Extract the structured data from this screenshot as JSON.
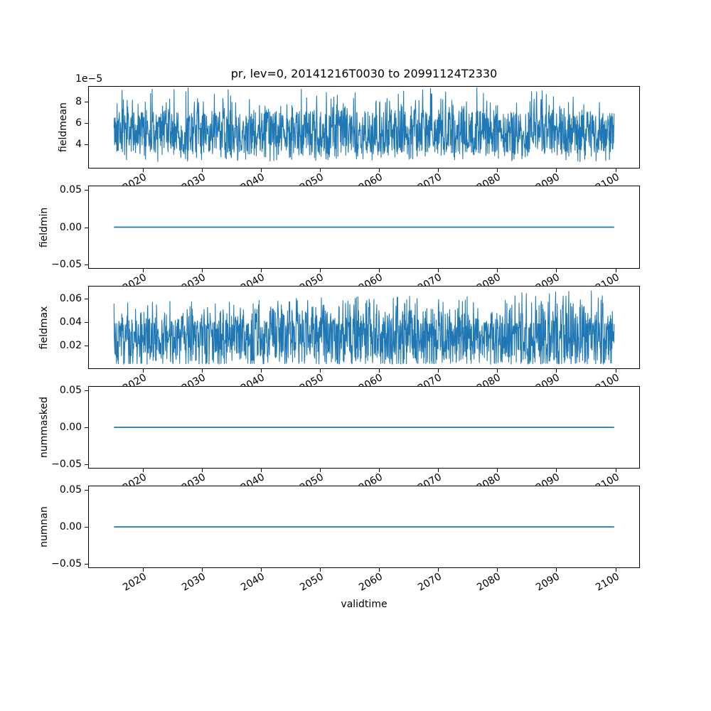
{
  "figure": {
    "title": "pr, lev=0, 20141216T0030 to 20991124T2330",
    "xlabel": "validtime",
    "background": "#ffffff",
    "line_color": "#1f77b4",
    "axis_color": "#000000"
  },
  "x_axis": {
    "label": "validtime",
    "tick_labels": [
      "2020",
      "2030",
      "2040",
      "2050",
      "2060",
      "2070",
      "2080",
      "2090",
      "2100"
    ],
    "tick_values": [
      2020,
      2030,
      2040,
      2050,
      2060,
      2070,
      2080,
      2090,
      2100
    ],
    "tick_rotation_deg": 30,
    "xlim": [
      2010.7,
      2104.15
    ],
    "data_range": [
      2014.96,
      2099.9
    ]
  },
  "chart_data": [
    {
      "type": "line",
      "name": "fieldmean",
      "ylabel": "fieldmean",
      "offset_text": "1e−5",
      "ytick_labels": [
        "8",
        "6",
        "4"
      ],
      "ytick_values": [
        8e-05,
        6e-05,
        4e-05
      ],
      "ylim": [
        1.78e-05,
        9.42e-05
      ],
      "series": {
        "kind": "noise",
        "n": 1600,
        "seed": 42,
        "core_min": 3.3e-05,
        "core_max": 7e-05,
        "spike_prob": 0.11,
        "spike_max": 9.35e-05,
        "dip_prob": 0.11,
        "dip_min": 2.35e-05,
        "trend": 0,
        "data_min": 2.3e-05,
        "data_max": 9.3e-05,
        "approx_mean": 5.2e-05
      }
    },
    {
      "type": "line",
      "name": "fieldmin",
      "ylabel": "fieldmin",
      "ytick_labels": [
        "0.05",
        "0.00",
        "−0.05"
      ],
      "ytick_values": [
        0.05,
        0.0,
        -0.05
      ],
      "ylim": [
        -0.055,
        0.055
      ],
      "series": {
        "kind": "flat",
        "value": 0.0
      }
    },
    {
      "type": "line",
      "name": "fieldmax",
      "ylabel": "fieldmax",
      "ytick_labels": [
        "0.06",
        "0.04",
        "0.02"
      ],
      "ytick_values": [
        0.06,
        0.04,
        0.02
      ],
      "ylim": [
        0.0008,
        0.0703
      ],
      "series": {
        "kind": "noise",
        "n": 1600,
        "seed": 7,
        "core_min": 0.005,
        "core_max": 0.0385,
        "spike_prob": 0.28,
        "spike_max": 0.062,
        "dip_prob": 0.06,
        "dip_min": 0.0042,
        "trend": 0.45,
        "data_min": 0.004,
        "data_max": 0.068
      }
    },
    {
      "type": "line",
      "name": "nummasked",
      "ylabel": "nummasked",
      "ytick_labels": [
        "0.05",
        "0.00",
        "−0.05"
      ],
      "ytick_values": [
        0.05,
        0.0,
        -0.05
      ],
      "ylim": [
        -0.055,
        0.055
      ],
      "series": {
        "kind": "flat",
        "value": 0.0
      }
    },
    {
      "type": "line",
      "name": "numnan",
      "ylabel": "numnan",
      "ytick_labels": [
        "0.05",
        "0.00",
        "−0.05"
      ],
      "ytick_values": [
        0.05,
        0.0,
        -0.05
      ],
      "ylim": [
        -0.055,
        0.055
      ],
      "series": {
        "kind": "flat",
        "value": 0.0
      }
    }
  ]
}
